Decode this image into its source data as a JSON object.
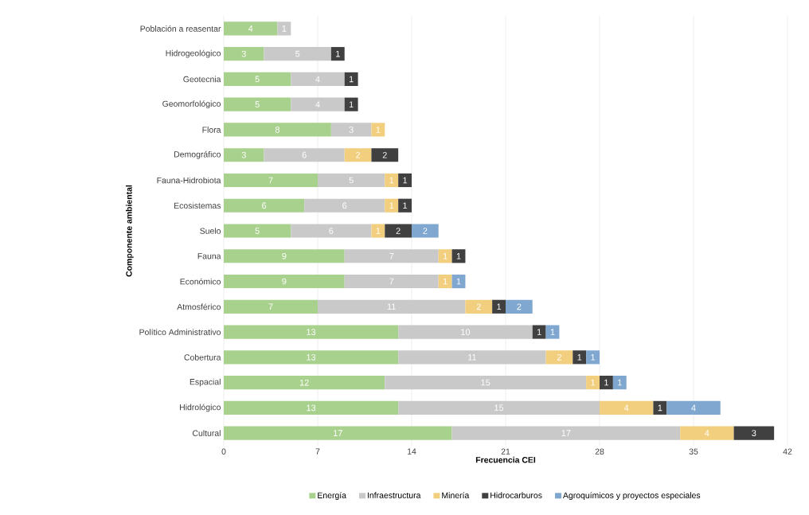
{
  "chart_data": {
    "type": "bar",
    "orientation": "horizontal",
    "stacked": true,
    "xlabel": "Frecuencia CEI",
    "ylabel": "Componente ambiental",
    "categories": [
      "Población a reasentar",
      "Hidrogeológico",
      "Geotecnia",
      "Geomorfológico",
      "Flora",
      "Demográfico",
      "Fauna-Hidrobiota",
      "Ecosistemas",
      "Suelo",
      "Fauna",
      "Económico",
      "Atmosférico",
      "Político Administrativo",
      "Cobertura",
      "Espacial",
      "Hidrológico",
      "Cultural"
    ],
    "series": [
      {
        "name": "Energía",
        "color": "#a9d18e",
        "values": [
          4,
          3,
          5,
          5,
          8,
          3,
          7,
          6,
          5,
          9,
          9,
          7,
          13,
          13,
          12,
          13,
          17
        ]
      },
      {
        "name": "Infraestructura",
        "color": "#c9c9c9",
        "values": [
          1,
          5,
          4,
          4,
          3,
          6,
          5,
          6,
          6,
          7,
          7,
          11,
          10,
          11,
          15,
          15,
          17
        ]
      },
      {
        "name": "Minería",
        "color": "#f2cf7e",
        "values": [
          null,
          null,
          null,
          null,
          1,
          2,
          1,
          1,
          1,
          1,
          1,
          2,
          null,
          2,
          1,
          4,
          4
        ]
      },
      {
        "name": "Hidrocarburos",
        "color": "#404040",
        "values": [
          null,
          1,
          1,
          1,
          null,
          2,
          1,
          1,
          2,
          1,
          null,
          1,
          1,
          1,
          1,
          1,
          3
        ]
      },
      {
        "name": "Agroquímicos y proyectos especiales",
        "color": "#7fa7d0",
        "values": [
          null,
          null,
          null,
          null,
          null,
          null,
          null,
          null,
          2,
          null,
          1,
          2,
          1,
          1,
          1,
          4,
          null
        ]
      }
    ],
    "xlim": [
      0,
      42
    ],
    "xticks": [
      0,
      7,
      14,
      21,
      28,
      35,
      42
    ],
    "grid": "x",
    "legend": "bottom",
    "data_labels": true
  }
}
